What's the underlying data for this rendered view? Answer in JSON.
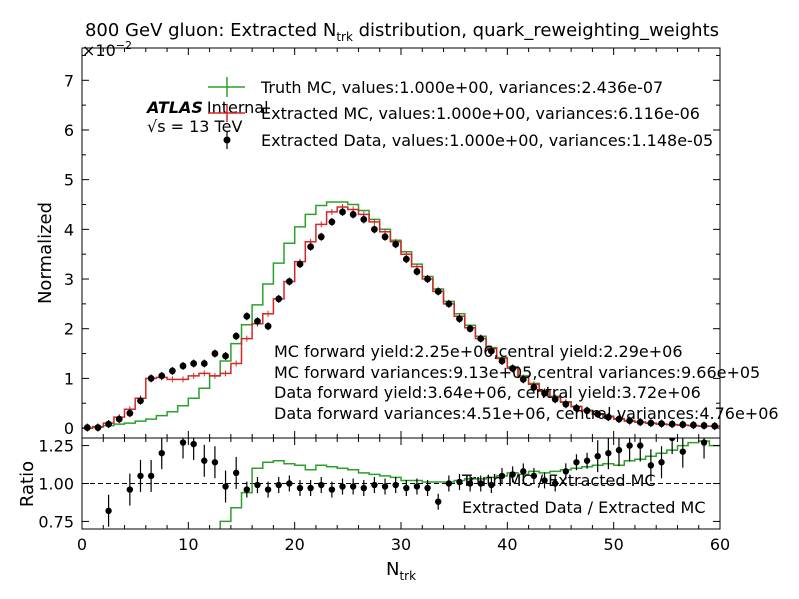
{
  "chart_data": [
    {
      "type": "line",
      "panel": "main",
      "title": "800 GeV gluon: Extracted N",
      "title_sub": "trk",
      "title_rest": " distribution, quark_reweighting_weights",
      "ylabel": "Normalized",
      "y_multiplier": "×10",
      "y_multiplier_exp": "−2",
      "xlim": [
        0,
        60
      ],
      "ylim": [
        -0.2,
        7.65
      ],
      "ytick_values": [
        0,
        1,
        2,
        3,
        4,
        5,
        6,
        7
      ],
      "yticks": [
        "0",
        "1",
        "2",
        "3",
        "4",
        "5",
        "6",
        "7"
      ],
      "atlas_label": "ATLAS",
      "atlas_sub": "Internal",
      "energy_prefix": "√s",
      "energy_label": " = 13 TeV",
      "legend": [
        "Truth MC, values:1.000e+00, variances:2.436e-07",
        "Extracted MC, values:1.000e+00, variances:6.116e-06",
        "Extracted Data, values:1.000e+00, variances:1.148e-05"
      ],
      "annotations": [
        "MC forward yield:2.25e+06,central yield:2.29e+06",
        "MC forward variances:9.13e+05,central variances:9.66e+05",
        "Data forward yield:3.64e+06, central yield:3.72e+06",
        "Data forward variances:4.51e+06, central variances:4.76e+06"
      ],
      "bin_edges": [
        0,
        1,
        2,
        3,
        4,
        5,
        6,
        7,
        8,
        9,
        10,
        11,
        12,
        13,
        14,
        15,
        16,
        17,
        18,
        19,
        20,
        21,
        22,
        23,
        24,
        25,
        26,
        27,
        28,
        29,
        30,
        31,
        32,
        33,
        34,
        35,
        36,
        37,
        38,
        39,
        40,
        41,
        42,
        43,
        44,
        45,
        46,
        47,
        48,
        49,
        50,
        51,
        52,
        53,
        54,
        55,
        56,
        57,
        58,
        59,
        60
      ],
      "series": [
        {
          "name": "Truth MC",
          "color": "#2ca02c",
          "style": "step",
          "values": [
            0.0,
            0.02,
            0.05,
            0.08,
            0.1,
            0.14,
            0.18,
            0.25,
            0.33,
            0.45,
            0.6,
            0.8,
            1.05,
            1.35,
            1.7,
            2.08,
            2.48,
            2.9,
            3.32,
            3.72,
            4.05,
            4.3,
            4.48,
            4.55,
            4.55,
            4.5,
            4.38,
            4.2,
            4.0,
            3.78,
            3.55,
            3.3,
            3.05,
            2.8,
            2.55,
            2.3,
            2.07,
            1.85,
            1.62,
            1.42,
            1.23,
            1.05,
            0.9,
            0.76,
            0.64,
            0.53,
            0.44,
            0.36,
            0.29,
            0.24,
            0.19,
            0.15,
            0.12,
            0.1,
            0.08,
            0.07,
            0.06,
            0.05,
            0.04,
            0.04
          ]
        },
        {
          "name": "Extracted MC",
          "color": "#d62728",
          "style": "step",
          "values": [
            0.0,
            0.03,
            0.1,
            0.22,
            0.38,
            0.6,
            1.0,
            1.02,
            0.98,
            0.98,
            1.05,
            1.1,
            1.05,
            1.1,
            1.3,
            1.8,
            2.1,
            2.3,
            2.6,
            2.95,
            3.35,
            3.75,
            4.1,
            4.35,
            4.45,
            4.4,
            4.3,
            4.15,
            3.95,
            3.75,
            3.5,
            3.25,
            3.0,
            2.75,
            2.5,
            2.25,
            2.02,
            1.8,
            1.6,
            1.4,
            1.2,
            1.02,
            0.88,
            0.74,
            0.62,
            0.52,
            0.43,
            0.35,
            0.28,
            0.23,
            0.18,
            0.14,
            0.12,
            0.1,
            0.08,
            0.07,
            0.06,
            0.05,
            0.04,
            0.04
          ]
        },
        {
          "name": "Extracted Data",
          "color": "#000000",
          "style": "points",
          "x": [
            0.5,
            1.5,
            2.5,
            3.5,
            4.5,
            5.5,
            6.5,
            7.5,
            8.5,
            9.5,
            10.5,
            11.5,
            12.5,
            13.5,
            14.5,
            15.5,
            16.5,
            17.5,
            18.5,
            19.5,
            20.5,
            21.5,
            22.5,
            23.5,
            24.5,
            25.5,
            26.5,
            27.5,
            28.5,
            29.5,
            30.5,
            31.5,
            32.5,
            33.5,
            34.5,
            35.5,
            36.5,
            37.5,
            38.5,
            39.5,
            40.5,
            41.5,
            42.5,
            43.5,
            44.5,
            45.5,
            46.5,
            47.5,
            48.5,
            49.5,
            50.5,
            51.5,
            52.5,
            53.5,
            54.5,
            55.5,
            56.5,
            57.5,
            58.5,
            59.5
          ],
          "values": [
            0.01,
            0.01,
            0.08,
            0.18,
            0.3,
            0.55,
            1.0,
            1.05,
            1.15,
            1.25,
            1.3,
            1.3,
            1.5,
            1.45,
            1.85,
            2.25,
            2.15,
            2.05,
            2.6,
            2.95,
            3.3,
            3.65,
            3.85,
            4.15,
            4.35,
            4.3,
            4.2,
            4.0,
            3.85,
            3.7,
            3.4,
            3.15,
            3.0,
            2.75,
            2.5,
            2.2,
            2.0,
            1.8,
            1.55,
            1.35,
            1.2,
            0.98,
            0.82,
            0.7,
            0.58,
            0.48,
            0.4,
            0.35,
            0.28,
            0.22,
            0.18,
            0.15,
            0.12,
            0.1,
            0.09,
            0.08,
            0.07,
            0.06,
            0.05,
            0.04
          ]
        }
      ]
    },
    {
      "type": "line",
      "panel": "ratio",
      "xlabel": "N",
      "xlabel_sub": "trk",
      "ylabel": "Ratio",
      "xlim": [
        0,
        60
      ],
      "ylim": [
        0.7,
        1.3
      ],
      "xtick_values": [
        0,
        10,
        20,
        30,
        40,
        50,
        60
      ],
      "xticks": [
        "0",
        "10",
        "20",
        "30",
        "40",
        "50",
        "60"
      ],
      "ytick_values": [
        0.75,
        1.0,
        1.25
      ],
      "yticks": [
        "0.75",
        "1.00",
        "1.25"
      ],
      "reference_line": 1.0,
      "legend": [
        "Truth MC / Extracted MC",
        "Extracted Data / Extracted MC"
      ],
      "series": [
        {
          "name": "Truth MC / Extracted MC",
          "color": "#2ca02c",
          "style": "step",
          "start_bin": 11,
          "values": [
            0.55,
            0.6,
            0.75,
            0.84,
            0.94,
            1.1,
            1.14,
            1.15,
            1.13,
            1.12,
            1.09,
            1.12,
            1.11,
            1.1,
            1.09,
            1.07,
            1.06,
            1.05,
            1.04,
            1.02,
            1.02,
            1.01,
            1.01,
            1.01,
            1.02,
            1.03,
            1.03,
            1.04,
            1.05,
            1.07,
            1.06,
            1.08,
            1.07,
            1.08,
            1.09,
            1.1,
            1.11,
            1.12,
            1.13,
            1.12,
            1.15,
            1.16,
            1.18,
            1.2,
            1.22,
            1.25,
            1.27,
            1.28,
            1.25
          ]
        },
        {
          "name": "Extracted Data / Extracted MC",
          "color": "#000000",
          "style": "points",
          "x": [
            2.5,
            4.5,
            5.5,
            6.5,
            7.5,
            9.5,
            10.5,
            11.5,
            12.5,
            13.5,
            14.5,
            15.5,
            16.5,
            17.5,
            18.5,
            19.5,
            20.5,
            21.5,
            22.5,
            23.5,
            24.5,
            25.5,
            26.5,
            27.5,
            28.5,
            29.5,
            30.5,
            31.5,
            32.5,
            33.5,
            34.5,
            35.5,
            36.5,
            37.5,
            38.5,
            39.5,
            40.5,
            41.5,
            42.5,
            43.5,
            44.5,
            45.5,
            46.5,
            47.5,
            48.5,
            49.5,
            50.5,
            51.5,
            52.5,
            53.5,
            54.5,
            55.5,
            56.5,
            58.5
          ],
          "values": [
            0.82,
            0.96,
            1.05,
            1.05,
            1.2,
            1.27,
            1.26,
            1.15,
            1.14,
            0.98,
            1.07,
            0.96,
            0.99,
            0.96,
            0.99,
            1.0,
            0.97,
            0.97,
            0.99,
            0.96,
            0.98,
            0.98,
            0.97,
            0.99,
            0.98,
            0.99,
            0.97,
            0.98,
            0.97,
            0.88,
            1.0,
            1.01,
            1.0,
            1.0,
            0.99,
            1.05,
            1.06,
            1.08,
            1.05,
            1.02,
            1.0,
            1.08,
            1.14,
            1.15,
            1.18,
            1.2,
            1.22,
            1.25,
            1.25,
            1.12,
            1.14,
            1.3,
            1.21,
            1.27
          ]
        }
      ]
    }
  ]
}
